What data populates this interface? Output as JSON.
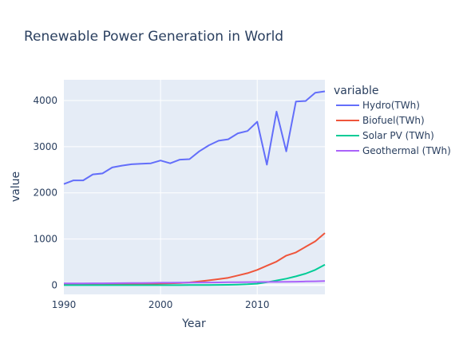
{
  "chart_data": {
    "type": "line",
    "title": "Renewable Power Generation in World",
    "xlabel": "Year",
    "ylabel": "value",
    "xlim": [
      1990,
      2017
    ],
    "ylim": [
      -200,
      4450
    ],
    "xticks": [
      1990,
      2000,
      2010
    ],
    "yticks": [
      0,
      1000,
      2000,
      3000,
      4000
    ],
    "grid": true,
    "legend_title": "variable",
    "legend_position": "right",
    "x": [
      1990,
      1991,
      1992,
      1993,
      1994,
      1995,
      1996,
      1997,
      1998,
      1999,
      2000,
      2001,
      2002,
      2003,
      2004,
      2005,
      2006,
      2007,
      2008,
      2009,
      2010,
      2011,
      2012,
      2013,
      2014,
      2015,
      2016,
      2017
    ],
    "series": [
      {
        "name": "Hydro(TWh)",
        "color": "#636efa",
        "values": [
          2190,
          2270,
          2270,
          2400,
          2420,
          2550,
          2590,
          2620,
          2630,
          2640,
          2700,
          2640,
          2720,
          2730,
          2900,
          3030,
          3130,
          3160,
          3290,
          3340,
          3540,
          2610,
          3760,
          2900,
          3980,
          3990,
          4170,
          4200
        ]
      },
      {
        "name": "Biofuel(TWh)",
        "color": "#ef553b",
        "values": [
          10,
          12,
          14,
          16,
          18,
          20,
          22,
          24,
          26,
          30,
          35,
          40,
          48,
          60,
          80,
          105,
          130,
          160,
          210,
          260,
          330,
          420,
          510,
          640,
          710,
          830,
          950,
          1130
        ]
      },
      {
        "name": "Solar PV (TWh)",
        "color": "#00cc96",
        "values": [
          0,
          0,
          0,
          0,
          0,
          0,
          0,
          0,
          0,
          0,
          1,
          1,
          1,
          2,
          3,
          4,
          5,
          7,
          12,
          20,
          32,
          63,
          100,
          140,
          190,
          250,
          330,
          445
        ]
      },
      {
        "name": "Geothermal (TWh)",
        "color": "#ab63fa",
        "values": [
          36,
          38,
          39,
          40,
          41,
          42,
          44,
          46,
          47,
          49,
          52,
          53,
          54,
          56,
          57,
          58,
          60,
          62,
          64,
          66,
          68,
          69,
          70,
          71,
          75,
          80,
          84,
          88
        ]
      }
    ]
  }
}
